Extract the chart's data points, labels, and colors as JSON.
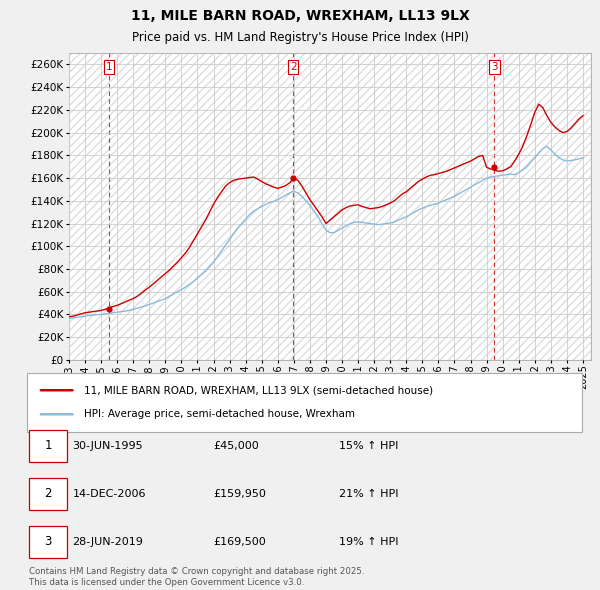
{
  "title1": "11, MILE BARN ROAD, WREXHAM, LL13 9LX",
  "title2": "Price paid vs. HM Land Registry's House Price Index (HPI)",
  "ylim": [
    0,
    270000
  ],
  "yticks": [
    0,
    20000,
    40000,
    60000,
    80000,
    100000,
    120000,
    140000,
    160000,
    180000,
    200000,
    220000,
    240000,
    260000
  ],
  "background_color": "#f0f0f0",
  "plot_bg_color": "#ffffff",
  "grid_color": "#cccccc",
  "hatch_color": "#e0e0e0",
  "sale_dates": [
    "1995-06-30",
    "2006-12-14",
    "2019-06-28"
  ],
  "sale_prices": [
    45000,
    159950,
    169500
  ],
  "sale_labels": [
    "1",
    "2",
    "3"
  ],
  "legend_line1": "11, MILE BARN ROAD, WREXHAM, LL13 9LX (semi-detached house)",
  "legend_line2": "HPI: Average price, semi-detached house, Wrexham",
  "table_rows": [
    [
      "1",
      "30-JUN-1995",
      "£45,000",
      "15% ↑ HPI"
    ],
    [
      "2",
      "14-DEC-2006",
      "£159,950",
      "21% ↑ HPI"
    ],
    [
      "3",
      "28-JUN-2019",
      "£169,500",
      "19% ↑ HPI"
    ]
  ],
  "footer": "Contains HM Land Registry data © Crown copyright and database right 2025.\nThis data is licensed under the Open Government Licence v3.0.",
  "line_color_red": "#cc0000",
  "line_color_blue": "#88bbdd",
  "vline_color": "#cc0000",
  "xlim": [
    1993.0,
    2025.5
  ],
  "xtick_years": [
    1993,
    1994,
    1995,
    1996,
    1997,
    1998,
    1999,
    2000,
    2001,
    2002,
    2003,
    2004,
    2005,
    2006,
    2007,
    2008,
    2009,
    2010,
    2011,
    2012,
    2013,
    2014,
    2015,
    2016,
    2017,
    2018,
    2019,
    2020,
    2021,
    2022,
    2023,
    2024,
    2025
  ],
  "hpi_x": [
    1993.0,
    1993.25,
    1993.5,
    1993.75,
    1994.0,
    1994.25,
    1994.5,
    1994.75,
    1995.0,
    1995.25,
    1995.5,
    1995.75,
    1996.0,
    1996.25,
    1996.5,
    1996.75,
    1997.0,
    1997.25,
    1997.5,
    1997.75,
    1998.0,
    1998.25,
    1998.5,
    1998.75,
    1999.0,
    1999.25,
    1999.5,
    1999.75,
    2000.0,
    2000.25,
    2000.5,
    2000.75,
    2001.0,
    2001.25,
    2001.5,
    2001.75,
    2002.0,
    2002.25,
    2002.5,
    2002.75,
    2003.0,
    2003.25,
    2003.5,
    2003.75,
    2004.0,
    2004.25,
    2004.5,
    2004.75,
    2005.0,
    2005.25,
    2005.5,
    2005.75,
    2006.0,
    2006.25,
    2006.5,
    2006.75,
    2007.0,
    2007.25,
    2007.5,
    2007.75,
    2008.0,
    2008.25,
    2008.5,
    2008.75,
    2009.0,
    2009.25,
    2009.5,
    2009.75,
    2010.0,
    2010.25,
    2010.5,
    2010.75,
    2011.0,
    2011.25,
    2011.5,
    2011.75,
    2012.0,
    2012.25,
    2012.5,
    2012.75,
    2013.0,
    2013.25,
    2013.5,
    2013.75,
    2014.0,
    2014.25,
    2014.5,
    2014.75,
    2015.0,
    2015.25,
    2015.5,
    2015.75,
    2016.0,
    2016.25,
    2016.5,
    2016.75,
    2017.0,
    2017.25,
    2017.5,
    2017.75,
    2018.0,
    2018.25,
    2018.5,
    2018.75,
    2019.0,
    2019.25,
    2019.5,
    2019.75,
    2020.0,
    2020.25,
    2020.5,
    2020.75,
    2021.0,
    2021.25,
    2021.5,
    2021.75,
    2022.0,
    2022.25,
    2022.5,
    2022.75,
    2023.0,
    2023.25,
    2023.5,
    2023.75,
    2024.0,
    2024.25,
    2024.5,
    2024.75,
    2025.0
  ],
  "hpi_y": [
    36500,
    37000,
    37500,
    38000,
    38500,
    39000,
    39500,
    39800,
    40000,
    40500,
    41000,
    41500,
    42000,
    42500,
    43000,
    43500,
    44500,
    45500,
    46500,
    47500,
    49000,
    50000,
    51500,
    52500,
    54000,
    56000,
    58000,
    60000,
    62000,
    64000,
    66500,
    69000,
    72000,
    75000,
    78000,
    82000,
    86000,
    91000,
    96000,
    101000,
    106000,
    111000,
    116000,
    120000,
    124000,
    128000,
    131000,
    133000,
    135000,
    137000,
    138500,
    139500,
    141000,
    143000,
    145000,
    147000,
    148500,
    147000,
    144000,
    140000,
    136000,
    131000,
    126000,
    120000,
    114000,
    112000,
    112000,
    114000,
    116000,
    118000,
    120000,
    121000,
    121500,
    121000,
    120500,
    120000,
    119500,
    119000,
    119500,
    120000,
    120500,
    121500,
    123000,
    124500,
    126000,
    128000,
    130000,
    132000,
    133500,
    135000,
    136000,
    137000,
    138000,
    139500,
    141000,
    142500,
    144000,
    146000,
    148000,
    150000,
    152000,
    154000,
    156000,
    158000,
    160000,
    161000,
    161500,
    162000,
    162500,
    163000,
    163500,
    163000,
    165000,
    167000,
    170000,
    174000,
    178000,
    182000,
    186000,
    188000,
    185000,
    181000,
    178000,
    176000,
    175000,
    175500,
    176000,
    177000,
    178000
  ],
  "prop_x": [
    1993.0,
    1993.25,
    1993.5,
    1993.75,
    1994.0,
    1994.25,
    1994.5,
    1994.75,
    1995.0,
    1995.25,
    1995.5,
    1995.75,
    1996.0,
    1996.25,
    1996.5,
    1996.75,
    1997.0,
    1997.25,
    1997.5,
    1997.75,
    1998.0,
    1998.25,
    1998.5,
    1998.75,
    1999.0,
    1999.25,
    1999.5,
    1999.75,
    2000.0,
    2000.25,
    2000.5,
    2000.75,
    2001.0,
    2001.25,
    2001.5,
    2001.75,
    2002.0,
    2002.25,
    2002.5,
    2002.75,
    2003.0,
    2003.25,
    2003.5,
    2003.75,
    2004.0,
    2004.25,
    2004.5,
    2004.75,
    2005.0,
    2005.25,
    2005.5,
    2005.75,
    2006.0,
    2006.25,
    2006.5,
    2006.75,
    2007.0,
    2007.25,
    2007.5,
    2007.75,
    2008.0,
    2008.25,
    2008.5,
    2008.75,
    2009.0,
    2009.25,
    2009.5,
    2009.75,
    2010.0,
    2010.25,
    2010.5,
    2010.75,
    2011.0,
    2011.25,
    2011.5,
    2011.75,
    2012.0,
    2012.25,
    2012.5,
    2012.75,
    2013.0,
    2013.25,
    2013.5,
    2013.75,
    2014.0,
    2014.25,
    2014.5,
    2014.75,
    2015.0,
    2015.25,
    2015.5,
    2015.75,
    2016.0,
    2016.25,
    2016.5,
    2016.75,
    2017.0,
    2017.25,
    2017.5,
    2017.75,
    2018.0,
    2018.25,
    2018.5,
    2018.75,
    2019.0,
    2019.25,
    2019.5,
    2019.75,
    2020.0,
    2020.25,
    2020.5,
    2020.75,
    2021.0,
    2021.25,
    2021.5,
    2021.75,
    2022.0,
    2022.25,
    2022.5,
    2022.75,
    2023.0,
    2023.25,
    2023.5,
    2023.75,
    2024.0,
    2024.25,
    2024.5,
    2024.75,
    2025.0
  ],
  "prop_y": [
    38000,
    38500,
    39500,
    40500,
    41500,
    42000,
    42500,
    43000,
    43500,
    44500,
    46000,
    47000,
    48000,
    49500,
    51000,
    52500,
    54000,
    56000,
    58500,
    61500,
    64000,
    67000,
    70000,
    73000,
    76000,
    79000,
    82500,
    86000,
    90000,
    94000,
    99000,
    105000,
    111000,
    117000,
    123000,
    130000,
    137000,
    143000,
    148000,
    153000,
    156000,
    158000,
    159000,
    159500,
    160000,
    160500,
    161000,
    159000,
    157000,
    155000,
    153500,
    152000,
    151000,
    152000,
    153500,
    156000,
    159950,
    158000,
    153000,
    147000,
    141000,
    136000,
    131000,
    126000,
    120000,
    123000,
    126000,
    129000,
    132000,
    134000,
    135500,
    136000,
    136500,
    135000,
    134000,
    133000,
    133500,
    134000,
    135000,
    136500,
    138000,
    140000,
    143000,
    146000,
    148000,
    151000,
    154000,
    157000,
    159000,
    161000,
    162500,
    163000,
    164000,
    165000,
    166000,
    167500,
    169000,
    170500,
    172000,
    173500,
    175000,
    177000,
    179000,
    180000,
    169500,
    168000,
    167000,
    166000,
    166500,
    168000,
    170000,
    175000,
    181000,
    188000,
    197000,
    207000,
    218000,
    225000,
    222000,
    215000,
    209000,
    205000,
    202000,
    200000,
    201000,
    204000,
    208000,
    212000,
    215000
  ]
}
